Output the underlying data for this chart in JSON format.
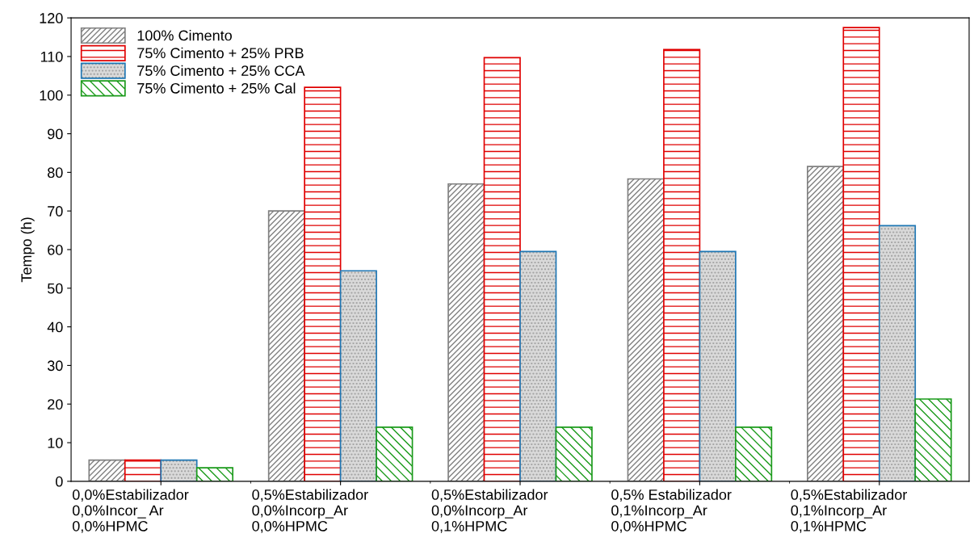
{
  "chart_data": {
    "type": "bar",
    "ylabel": "Tempo (h)",
    "categories": [
      "0,0%Estabilizador\n0,0%Incor_ Ar\n0,0%HPMC",
      "0,5%Estabilizador\n0,0%Incorp_Ar\n0,0%HPMC",
      "0,5%Estabilizador\n0,0%Incorp_Ar\n0,1%HPMC",
      "0,5% Estabilizador\n0,1%Incorp_Ar\n0,0%HPMC",
      "0,5%Estabilizador\n0,1%Incorp_Ar\n0,1%HPMC"
    ],
    "series": [
      {
        "name": "100% Cimento",
        "color": "#808080",
        "values": [
          5.5,
          70,
          77,
          78.3,
          81.5
        ]
      },
      {
        "name": "75% Cimento + 25% PRB",
        "color": "#e00000",
        "values": [
          5.5,
          102,
          109.7,
          111.8,
          117.5
        ]
      },
      {
        "name": "75% Cimento + 25% CCA",
        "color": "#1f77b4",
        "values": [
          5.5,
          54.5,
          59.5,
          59.5,
          66.2
        ]
      },
      {
        "name": "75% Cimento + 25% Cal",
        "color": "#1a9a1a",
        "values": [
          3.5,
          14,
          14,
          14,
          21.3
        ]
      }
    ],
    "ylim": [
      0,
      120
    ],
    "yticks": [
      0,
      10,
      20,
      30,
      40,
      50,
      60,
      70,
      80,
      90,
      100,
      110,
      120
    ],
    "grid": false,
    "legend": "top left"
  }
}
